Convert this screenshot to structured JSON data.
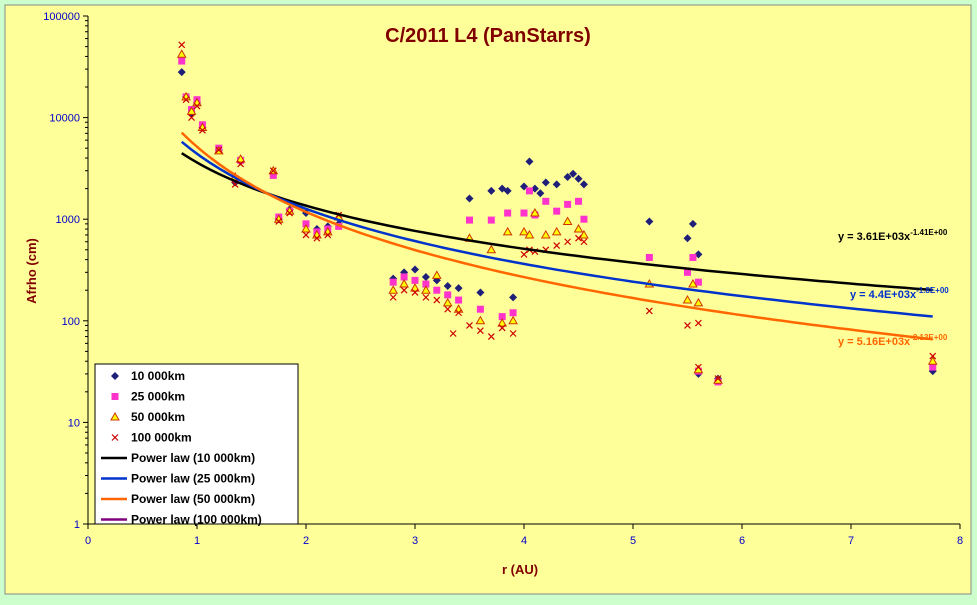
{
  "chart_data": {
    "type": "scatter",
    "title": "C/2011 L4 (PanStarrs)",
    "xlabel": "r (AU)",
    "ylabel": "Afrho (cm)",
    "x_range": [
      0,
      8
    ],
    "y_range": [
      1,
      100000
    ],
    "y_scale": "log",
    "x_ticks": [
      "0",
      "1",
      "2",
      "3",
      "4",
      "5",
      "6",
      "7",
      "8"
    ],
    "y_ticks": [
      "1",
      "10",
      "100",
      "1000",
      "10000",
      "100000"
    ],
    "grid": false,
    "legend_position": "bottom-left",
    "colors": {
      "plot_bg": "#ffff99",
      "outer_bg": "#ccffcc",
      "title": "#800000",
      "axis_label": "#800000",
      "tick": "#0000cc"
    },
    "series": [
      {
        "name": "10 000km",
        "marker": "diamond",
        "color": "#1f1f7a",
        "points": [
          [
            0.86,
            28000
          ],
          [
            0.9,
            16000
          ],
          [
            0.95,
            11000
          ],
          [
            1.0,
            14000
          ],
          [
            1.05,
            8000
          ],
          [
            1.2,
            4800
          ],
          [
            1.35,
            2300
          ],
          [
            1.4,
            3700
          ],
          [
            1.7,
            2800
          ],
          [
            1.75,
            1000
          ],
          [
            1.85,
            1250
          ],
          [
            2.0,
            1150
          ],
          [
            2.1,
            800
          ],
          [
            2.2,
            850
          ],
          [
            2.3,
            900
          ],
          [
            2.8,
            260
          ],
          [
            2.9,
            300
          ],
          [
            3.0,
            320
          ],
          [
            3.1,
            270
          ],
          [
            3.2,
            250
          ],
          [
            3.3,
            220
          ],
          [
            3.4,
            210
          ],
          [
            3.5,
            1600
          ],
          [
            3.6,
            190
          ],
          [
            3.7,
            1900
          ],
          [
            3.8,
            2000
          ],
          [
            3.85,
            1900
          ],
          [
            3.9,
            170
          ],
          [
            4.0,
            2100
          ],
          [
            4.05,
            3700
          ],
          [
            4.1,
            2000
          ],
          [
            4.15,
            1800
          ],
          [
            4.2,
            2300
          ],
          [
            4.3,
            2200
          ],
          [
            4.4,
            2600
          ],
          [
            4.45,
            2800
          ],
          [
            4.5,
            2500
          ],
          [
            4.55,
            2200
          ],
          [
            5.15,
            950
          ],
          [
            5.5,
            650
          ],
          [
            5.55,
            900
          ],
          [
            5.6,
            450
          ],
          [
            5.6,
            30
          ],
          [
            5.78,
            27
          ],
          [
            7.75,
            32
          ]
        ]
      },
      {
        "name": "25 000km",
        "marker": "square",
        "color": "#ff33cc",
        "points": [
          [
            0.86,
            36000
          ],
          [
            0.9,
            16000
          ],
          [
            0.95,
            12000
          ],
          [
            1.0,
            15000
          ],
          [
            1.05,
            8500
          ],
          [
            1.2,
            5000
          ],
          [
            1.35,
            2500
          ],
          [
            1.4,
            3800
          ],
          [
            1.7,
            2700
          ],
          [
            1.75,
            1050
          ],
          [
            1.85,
            1200
          ],
          [
            2.0,
            900
          ],
          [
            2.1,
            750
          ],
          [
            2.2,
            800
          ],
          [
            2.3,
            850
          ],
          [
            2.8,
            240
          ],
          [
            2.9,
            270
          ],
          [
            3.0,
            250
          ],
          [
            3.1,
            230
          ],
          [
            3.2,
            200
          ],
          [
            3.3,
            180
          ],
          [
            3.4,
            160
          ],
          [
            3.5,
            980
          ],
          [
            3.6,
            130
          ],
          [
            3.7,
            980
          ],
          [
            3.8,
            110
          ],
          [
            3.85,
            1150
          ],
          [
            3.9,
            120
          ],
          [
            4.0,
            1150
          ],
          [
            4.05,
            1900
          ],
          [
            4.1,
            1100
          ],
          [
            4.2,
            1500
          ],
          [
            4.3,
            1200
          ],
          [
            4.4,
            1400
          ],
          [
            4.5,
            1500
          ],
          [
            4.55,
            1000
          ],
          [
            5.15,
            420
          ],
          [
            5.5,
            300
          ],
          [
            5.55,
            420
          ],
          [
            5.6,
            240
          ],
          [
            5.6,
            32
          ],
          [
            5.78,
            25
          ],
          [
            7.75,
            35
          ]
        ]
      },
      {
        "name": "50 000km",
        "marker": "triangle",
        "color": "#cc3300",
        "points": [
          [
            0.86,
            42000
          ],
          [
            0.9,
            16000
          ],
          [
            0.95,
            11500
          ],
          [
            1.0,
            14000
          ],
          [
            1.05,
            8000
          ],
          [
            1.2,
            4700
          ],
          [
            1.35,
            2600
          ],
          [
            1.4,
            3900
          ],
          [
            1.7,
            3000
          ],
          [
            1.75,
            1000
          ],
          [
            1.85,
            1200
          ],
          [
            2.0,
            800
          ],
          [
            2.1,
            700
          ],
          [
            2.2,
            750
          ],
          [
            2.3,
            1050
          ],
          [
            2.8,
            200
          ],
          [
            2.9,
            230
          ],
          [
            3.0,
            210
          ],
          [
            3.1,
            200
          ],
          [
            3.2,
            280
          ],
          [
            3.3,
            150
          ],
          [
            3.4,
            130
          ],
          [
            3.5,
            650
          ],
          [
            3.6,
            100
          ],
          [
            3.7,
            500
          ],
          [
            3.8,
            95
          ],
          [
            3.85,
            750
          ],
          [
            3.9,
            100
          ],
          [
            4.0,
            750
          ],
          [
            4.05,
            700
          ],
          [
            4.1,
            1150
          ],
          [
            4.2,
            700
          ],
          [
            4.3,
            750
          ],
          [
            4.4,
            950
          ],
          [
            4.5,
            800
          ],
          [
            4.55,
            700
          ],
          [
            5.15,
            230
          ],
          [
            5.5,
            160
          ],
          [
            5.55,
            230
          ],
          [
            5.6,
            150
          ],
          [
            5.6,
            33
          ],
          [
            5.78,
            26
          ],
          [
            7.75,
            40
          ]
        ]
      },
      {
        "name": "100 000km",
        "marker": "cross",
        "color": "#cc0000",
        "points": [
          [
            0.86,
            52000
          ],
          [
            0.9,
            15000
          ],
          [
            0.95,
            10000
          ],
          [
            1.0,
            13000
          ],
          [
            1.05,
            7500
          ],
          [
            1.2,
            4800
          ],
          [
            1.35,
            2200
          ],
          [
            1.4,
            3500
          ],
          [
            1.7,
            3000
          ],
          [
            1.75,
            950
          ],
          [
            1.85,
            1150
          ],
          [
            2.0,
            700
          ],
          [
            2.1,
            650
          ],
          [
            2.2,
            700
          ],
          [
            2.3,
            1100
          ],
          [
            2.8,
            170
          ],
          [
            2.9,
            200
          ],
          [
            3.0,
            190
          ],
          [
            3.1,
            170
          ],
          [
            3.2,
            160
          ],
          [
            3.3,
            130
          ],
          [
            3.35,
            75
          ],
          [
            3.4,
            120
          ],
          [
            3.5,
            90
          ],
          [
            3.6,
            80
          ],
          [
            3.7,
            70
          ],
          [
            3.8,
            85
          ],
          [
            3.9,
            75
          ],
          [
            4.0,
            450
          ],
          [
            4.05,
            500
          ],
          [
            4.1,
            480
          ],
          [
            4.2,
            500
          ],
          [
            4.3,
            550
          ],
          [
            4.4,
            600
          ],
          [
            4.5,
            650
          ],
          [
            4.55,
            600
          ],
          [
            5.15,
            125
          ],
          [
            5.5,
            90
          ],
          [
            5.6,
            95
          ],
          [
            5.6,
            35
          ],
          [
            5.78,
            27
          ],
          [
            7.75,
            45
          ]
        ]
      }
    ],
    "fits": [
      {
        "name": "Power law (10 000km)",
        "color": "#000000",
        "a": 3610,
        "b": -1.41,
        "label_pre": "y = 3.61E+03x",
        "label_exp": "-1.41E+00"
      },
      {
        "name": "Power law (25 000km)",
        "color": "#0033cc",
        "a": 4400,
        "b": -1.8,
        "label_pre": "y = 4.4E+03x",
        "label_exp": "-1.8E+00"
      },
      {
        "name": "Power law (50 000km)",
        "color": "#ff6600",
        "a": 5160,
        "b": -2.13,
        "label_pre": "y = 5.16E+03x",
        "label_exp": "-2.13E+00"
      },
      {
        "name": "Power law (100 000km)",
        "color": "#800080",
        "a": null,
        "b": null,
        "label_pre": "",
        "label_exp": ""
      }
    ]
  }
}
